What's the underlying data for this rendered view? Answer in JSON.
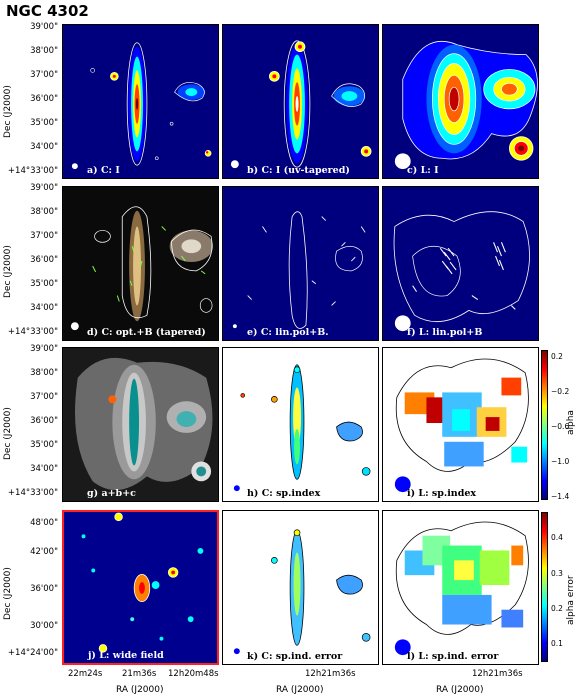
{
  "title": "NGC 4302",
  "rows": [
    {
      "ylabel": "Dec (J2000)",
      "ticks": [
        "39'00\"",
        "38'00\"",
        "37'00\"",
        "36'00\"",
        "35'00\"",
        "34'00\"",
        "+14°33'00\""
      ]
    },
    {
      "ylabel": "Dec (J2000)",
      "ticks": [
        "39'00\"",
        "38'00\"",
        "37'00\"",
        "36'00\"",
        "35'00\"",
        "34'00\"",
        "+14°33'00\""
      ]
    },
    {
      "ylabel": "Dec (J2000)",
      "ticks": [
        "39'00\"",
        "38'00\"",
        "37'00\"",
        "36'00\"",
        "35'00\"",
        "34'00\"",
        "+14°33'00\""
      ]
    },
    {
      "ylabel": "Dec (J2000)",
      "ticks": [
        "48'00\"",
        "42'00\"",
        "36'00\"",
        "30'00\"",
        "+14°24'00\""
      ]
    }
  ],
  "panels": [
    {
      "label": "a) C: I"
    },
    {
      "label": "b) C: I (uv-tapered)"
    },
    {
      "label": "c) L: I"
    },
    {
      "label": "d) C: opt.+B (tapered)"
    },
    {
      "label": "e) C: lin.pol+B."
    },
    {
      "label": "f) L: lin.pol+B"
    },
    {
      "label": "g)  a+b+c"
    },
    {
      "label": "h) C: sp.index"
    },
    {
      "label": "i) L: sp.index"
    },
    {
      "label": "j) L: wide field"
    },
    {
      "label": "k) C: sp.ind. error"
    },
    {
      "label": "l) L: sp.ind. error"
    }
  ],
  "xaxes": [
    {
      "ticks": [
        "22m24s",
        "21m36s",
        "12h20m48s"
      ],
      "label": "RA (J2000)"
    },
    {
      "ticks": [
        "12h21m36s"
      ],
      "label": "RA (J2000)"
    },
    {
      "ticks": [
        "12h21m36s"
      ],
      "label": "RA (J2000)"
    }
  ],
  "colorbars": [
    {
      "label": "alpha",
      "ticks": [
        "0.2",
        "−0.2",
        "−0.6",
        "−1.0",
        "−1.4"
      ]
    },
    {
      "label": "alpha error",
      "ticks": [
        "0.4",
        "0.3",
        "0.2",
        "0.1"
      ]
    }
  ],
  "colors": {
    "jet_bg": "#00007f",
    "frame_highlight": "#ff2020"
  }
}
